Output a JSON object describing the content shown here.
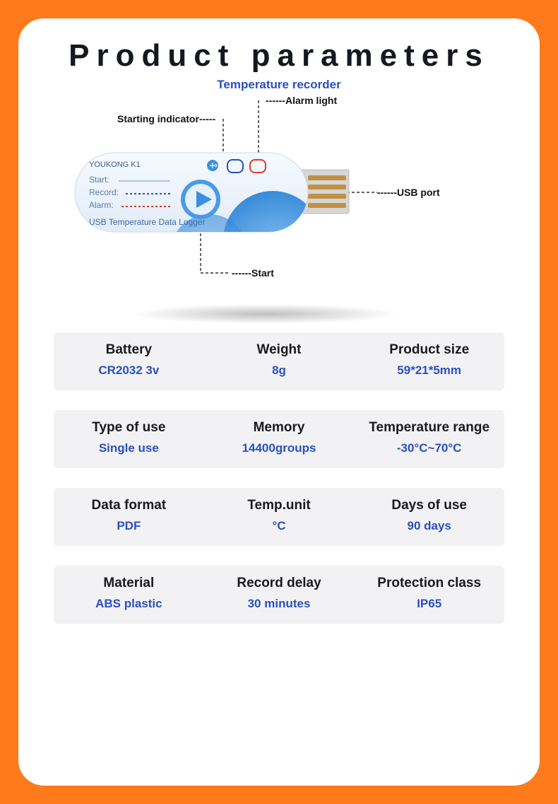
{
  "header": {
    "title": "Product parameters",
    "subtitle": "Temperature recorder"
  },
  "colors": {
    "page_bg": "#ff7a1a",
    "card_bg": "#ffffff",
    "title_color": "#151820",
    "accent_blue": "#2a4fc0",
    "row_bg": "#f2f2f4",
    "label_color": "#1a1a1a",
    "callout_color": "#111111",
    "device_body": "#eef4fb",
    "device_edge": "#cfd8e6",
    "device_accent": "#1f7ad6",
    "usb_metal": "#d6d6d4",
    "usb_contact": "#c09048",
    "led_blue": "#2a4fc0",
    "led_red": "#d93a2f",
    "record_line": "#2a4fc0",
    "alarm_line": "#d93a2f",
    "soft_blue_sphere": "#5aa8ea"
  },
  "diagram": {
    "callouts": {
      "starting_indicator": "Starting indicator",
      "alarm_light": "Alarm light",
      "usb_port": "USB port",
      "start": "Start"
    },
    "device": {
      "brand": "YOUKONG  K1",
      "lines": {
        "start": "Start:",
        "record": "Record:",
        "alarm": "Alarm:"
      },
      "footer": "USB Temperature Data Logger"
    }
  },
  "specs": [
    [
      {
        "label": "Battery",
        "value": "CR2032 3v"
      },
      {
        "label": "Weight",
        "value": "8g"
      },
      {
        "label": "Product size",
        "value": "59*21*5mm"
      }
    ],
    [
      {
        "label": "Type of use",
        "value": "Single use"
      },
      {
        "label": "Memory",
        "value": "14400groups"
      },
      {
        "label": "Temperature range",
        "value": "-30°C~70°C"
      }
    ],
    [
      {
        "label": "Data format",
        "value": "PDF"
      },
      {
        "label": "Temp.unit",
        "value": "°C"
      },
      {
        "label": "Days of use",
        "value": "90 days"
      }
    ],
    [
      {
        "label": "Material",
        "value": "ABS plastic"
      },
      {
        "label": "Record delay",
        "value": "30 minutes"
      },
      {
        "label": "Protection class",
        "value": "IP65"
      }
    ]
  ]
}
